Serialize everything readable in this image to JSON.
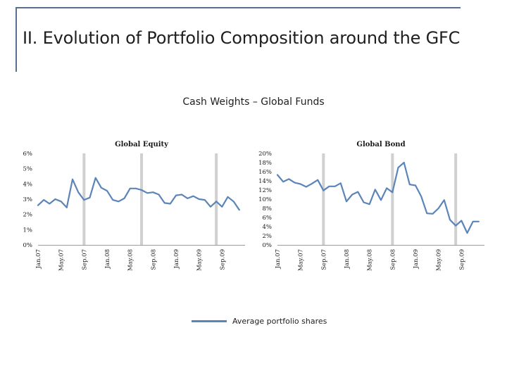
{
  "slide": {
    "title": "II. Evolution of Portfolio Composition around the GFC",
    "subtitle": "Cash Weights – Global Funds"
  },
  "legend": {
    "label": "Average portfolio shares",
    "color": "#5b84b9"
  },
  "colors": {
    "line": "#5b84b9",
    "crisis_bar": "#d0d0d0",
    "frame": "#596f8e"
  },
  "chart_data": [
    {
      "type": "line",
      "title": "Global Equity",
      "ylim": [
        0,
        6
      ],
      "yticks": [
        0,
        1,
        2,
        3,
        4,
        5,
        6
      ],
      "ytick_labels": [
        "0%",
        "1%",
        "2%",
        "3%",
        "4%",
        "5%",
        "6%"
      ],
      "xtick_labels": [
        "Jan.07",
        "May.07",
        "Sep.07",
        "Jan.08",
        "May.08",
        "Sep.08",
        "Jan.09",
        "May.09",
        "Sep.09"
      ],
      "xtick_positions": [
        0,
        4,
        8,
        12,
        16,
        20,
        24,
        28,
        32
      ],
      "x_range": [
        0,
        36
      ],
      "crisis_markers": [
        8,
        18,
        31
      ],
      "series": [
        {
          "name": "Average portfolio shares",
          "values": [
            2.6,
            2.95,
            2.7,
            3.0,
            2.85,
            2.45,
            4.3,
            3.45,
            2.95,
            3.1,
            4.4,
            3.75,
            3.55,
            2.95,
            2.85,
            3.05,
            3.7,
            3.7,
            3.6,
            3.4,
            3.45,
            3.3,
            2.75,
            2.7,
            3.25,
            3.3,
            3.05,
            3.2,
            3.0,
            2.95,
            2.5,
            2.85,
            2.5,
            3.15,
            2.85,
            2.3
          ]
        }
      ]
    },
    {
      "type": "line",
      "title": "Global Bond",
      "ylim": [
        0,
        20
      ],
      "yticks": [
        0,
        2,
        4,
        6,
        8,
        10,
        12,
        14,
        16,
        18,
        20
      ],
      "ytick_labels": [
        "0%",
        "2%",
        "4%",
        "6%",
        "8%",
        "10%",
        "12%",
        "14%",
        "16%",
        "18%",
        "20%"
      ],
      "xtick_labels": [
        "Jan.07",
        "May.07",
        "Sep.07",
        "Jan.08",
        "May.08",
        "Sep.08",
        "Jan.09",
        "May.09",
        "Sep.09"
      ],
      "xtick_positions": [
        0,
        4,
        8,
        12,
        16,
        20,
        24,
        28,
        32
      ],
      "x_range": [
        0,
        36
      ],
      "crisis_markers": [
        8,
        20,
        31
      ],
      "series": [
        {
          "name": "Average portfolio shares",
          "values": [
            15.3,
            13.8,
            14.4,
            13.6,
            13.3,
            12.7,
            13.4,
            14.2,
            11.9,
            12.8,
            12.8,
            13.5,
            9.5,
            11.0,
            11.6,
            9.3,
            8.9,
            12.1,
            9.8,
            12.4,
            11.5,
            16.9,
            18.0,
            13.2,
            13.0,
            10.6,
            6.9,
            6.8,
            8.0,
            9.8,
            5.5,
            4.2,
            5.3,
            2.6,
            5.1,
            5.1
          ]
        }
      ]
    }
  ]
}
